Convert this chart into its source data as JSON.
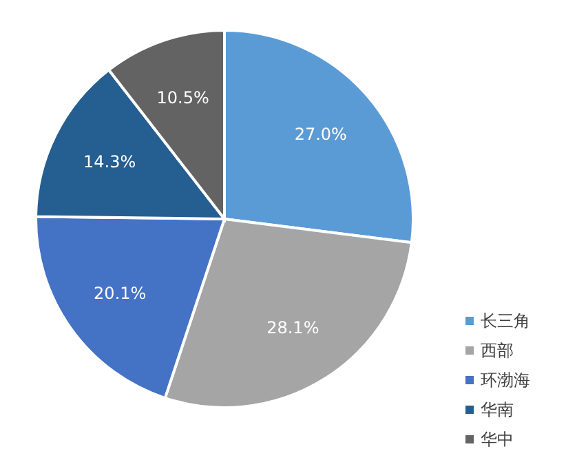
{
  "chart_data": {
    "type": "pie",
    "categories": [
      "长三角",
      "西部",
      "环渤海",
      "华南",
      "华中"
    ],
    "values": [
      27.0,
      28.1,
      20.1,
      14.3,
      10.5
    ],
    "colors": [
      "#5b9bd5",
      "#a5a5a5",
      "#4472c4",
      "#255e91",
      "#636363"
    ],
    "value_labels": [
      "27.0%",
      "28.1%",
      "20.1%",
      "14.3%",
      "10.5%"
    ],
    "legend": "bottom right"
  }
}
